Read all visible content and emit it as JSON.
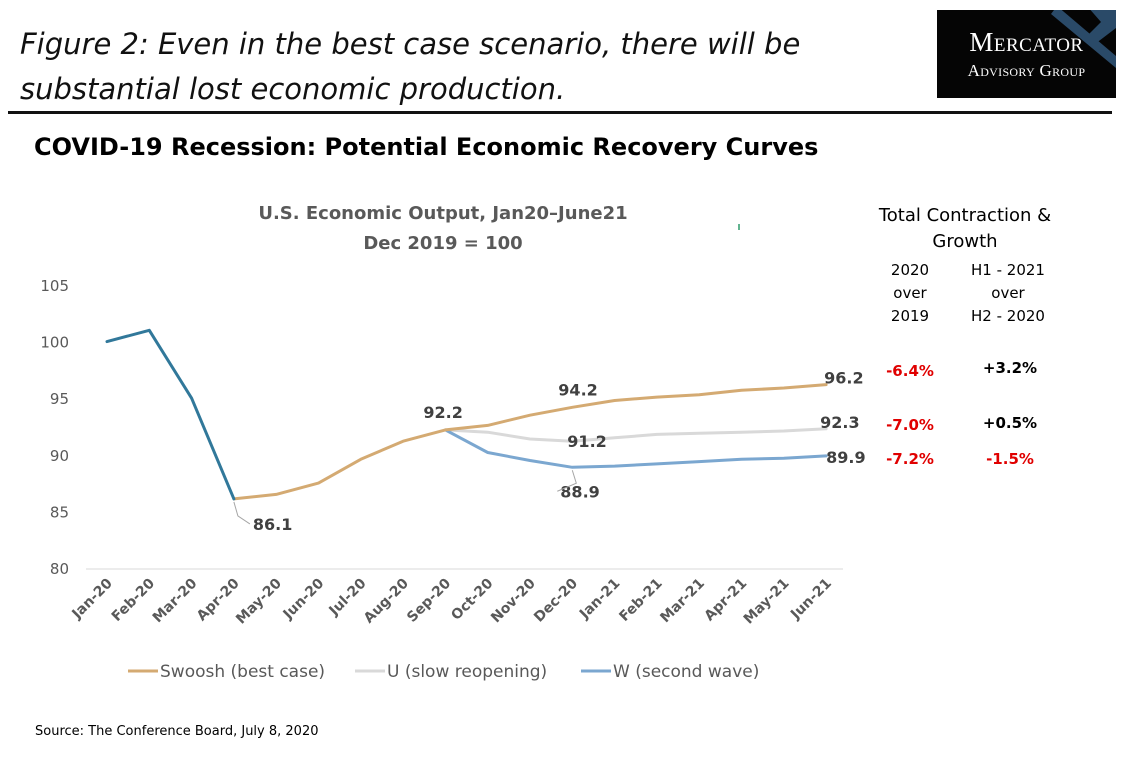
{
  "figure_title": {
    "line1": "Figure 2: Even in the best case scenario, there will be",
    "line2": "substantial lost economic production."
  },
  "logo": {
    "name": "Mercator",
    "subtitle": "Advisory Group",
    "x_color": "#2a4a68"
  },
  "chart_heading": "COVID-19 Recession: Potential Economic Recovery Curves",
  "source": "Source: The Conference Board, July 8, 2020",
  "chart_data": {
    "type": "line",
    "title": "U.S. Economic Output, Jan20–June21",
    "subtitle": "Dec 2019 = 100",
    "xlabel": "",
    "ylabel": "",
    "ylim": [
      80,
      105
    ],
    "yticks": [
      80,
      85,
      90,
      95,
      100,
      105
    ],
    "grid": false,
    "legend_position": "bottom",
    "categories": [
      "Jan-20",
      "Feb-20",
      "Mar-20",
      "Apr-20",
      "May-20",
      "Jun-20",
      "Jul-20",
      "Aug-20",
      "Sep-20",
      "Oct-20",
      "Nov-20",
      "Dec-20",
      "Jan-21",
      "Feb-21",
      "Mar-21",
      "Apr-21",
      "May-21",
      "Jun-21"
    ],
    "history": {
      "color": "#31789a",
      "values": [
        100,
        101,
        95,
        86.1,
        null,
        null,
        null,
        null,
        null,
        null,
        null,
        null,
        null,
        null,
        null,
        null,
        null,
        null
      ]
    },
    "series": [
      {
        "name": "Swoosh (best case)",
        "color": "#d4aa72",
        "values": [
          null,
          null,
          null,
          86.1,
          86.5,
          87.5,
          89.6,
          91.2,
          92.2,
          92.6,
          93.5,
          94.2,
          94.8,
          95.1,
          95.3,
          95.7,
          95.9,
          96.2
        ]
      },
      {
        "name": "U (slow reopening)",
        "color": "#d9d9d9",
        "values": [
          null,
          null,
          null,
          null,
          null,
          null,
          null,
          null,
          92.2,
          92.0,
          91.4,
          91.2,
          91.5,
          91.8,
          91.9,
          92.0,
          92.1,
          92.3
        ]
      },
      {
        "name": "W (second wave)",
        "color": "#7ba7d0",
        "values": [
          null,
          null,
          null,
          null,
          null,
          null,
          null,
          null,
          92.2,
          90.2,
          89.5,
          88.9,
          89.0,
          89.2,
          89.4,
          89.6,
          89.7,
          89.9
        ]
      }
    ],
    "annotations": [
      {
        "label": "86.1",
        "category": "Apr-20",
        "value": 86.1
      },
      {
        "label": "92.2",
        "category": "Sep-20",
        "value": 92.2
      },
      {
        "label": "94.2",
        "category": "Dec-20",
        "value": 94.2
      },
      {
        "label": "91.2",
        "category": "Dec-20",
        "value": 91.2
      },
      {
        "label": "88.9",
        "category": "Dec-20",
        "value": 88.9
      },
      {
        "label": "96.2",
        "category": "Jun-21",
        "value": 96.2
      },
      {
        "label": "92.3",
        "category": "Jun-21",
        "value": 92.3
      },
      {
        "label": "89.9",
        "category": "Jun-21",
        "value": 89.9
      }
    ]
  },
  "side_table": {
    "heading_line1": "Total Contraction &",
    "heading_line2": "Growth",
    "col1_header": [
      "2020",
      "over",
      "2019"
    ],
    "col2_header": [
      "H1 - 2021",
      "over",
      "H2 - 2020"
    ],
    "rows": [
      {
        "col1": "-6.4%",
        "col2": "+3.2%"
      },
      {
        "col1": "-7.0%",
        "col2": "+0.5%"
      },
      {
        "col1": "-7.2%",
        "col2": "-1.5%"
      }
    ],
    "negative_color": "#e00000",
    "positive_color": "#000000"
  }
}
